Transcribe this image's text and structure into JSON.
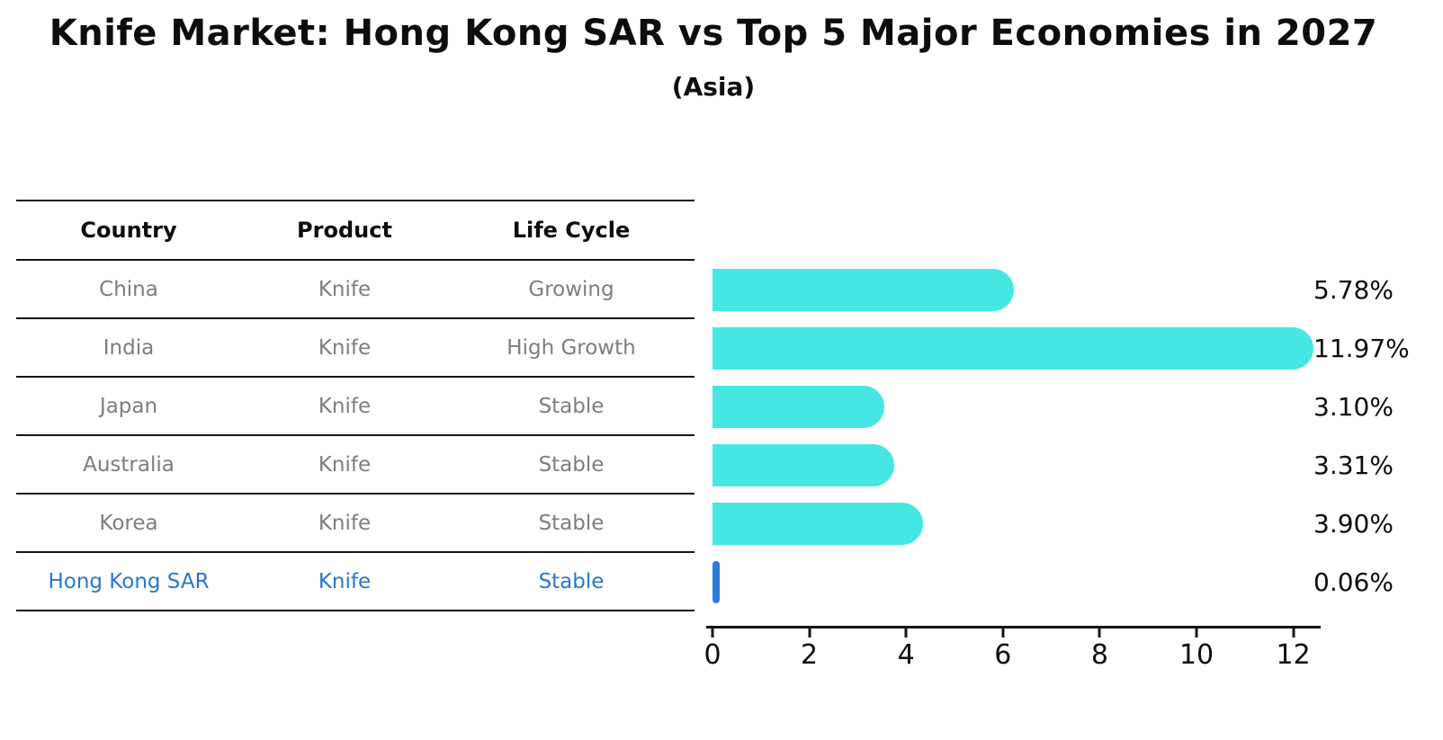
{
  "title": "Knife Market: Hong Kong SAR vs Top 5 Major Economies in 2027",
  "subtitle": "(Asia)",
  "table": {
    "headers": [
      "Country",
      "Product",
      "Life Cycle"
    ],
    "rows": [
      {
        "country": "China",
        "product": "Knife",
        "life_cycle": "Growing",
        "highlight": false
      },
      {
        "country": "India",
        "product": "Knife",
        "life_cycle": "High Growth",
        "highlight": false
      },
      {
        "country": "Japan",
        "product": "Knife",
        "life_cycle": "Stable",
        "highlight": false
      },
      {
        "country": "Australia",
        "product": "Knife",
        "life_cycle": "Stable",
        "highlight": false
      },
      {
        "country": "Korea",
        "product": "Knife",
        "life_cycle": "Stable",
        "highlight": false
      },
      {
        "country": "Hong Kong SAR",
        "product": "Knife",
        "life_cycle": "Stable",
        "highlight": true
      }
    ]
  },
  "chart_data": {
    "type": "bar",
    "orientation": "horizontal",
    "title": "Knife Market: Hong Kong SAR vs Top 5 Major Economies in 2027",
    "subtitle": "(Asia)",
    "categories": [
      "China",
      "India",
      "Japan",
      "Australia",
      "Korea",
      "Hong Kong SAR"
    ],
    "values": [
      5.78,
      11.97,
      3.1,
      3.31,
      3.9,
      0.06
    ],
    "value_labels": [
      "5.78%",
      "11.97%",
      "3.10%",
      "3.31%",
      "3.90%",
      "0.06%"
    ],
    "xticks": [
      "0",
      "2",
      "4",
      "6",
      "8",
      "10",
      "12"
    ],
    "xtick_values": [
      0,
      2,
      4,
      6,
      8,
      10,
      12
    ],
    "xlim": [
      0,
      12.55
    ],
    "grid": false,
    "legend": false,
    "bar_color": "#46e7e2",
    "highlight_color": "#2b7cd9",
    "highlight_text_color": "#2878ce",
    "highlight_index": 5
  }
}
